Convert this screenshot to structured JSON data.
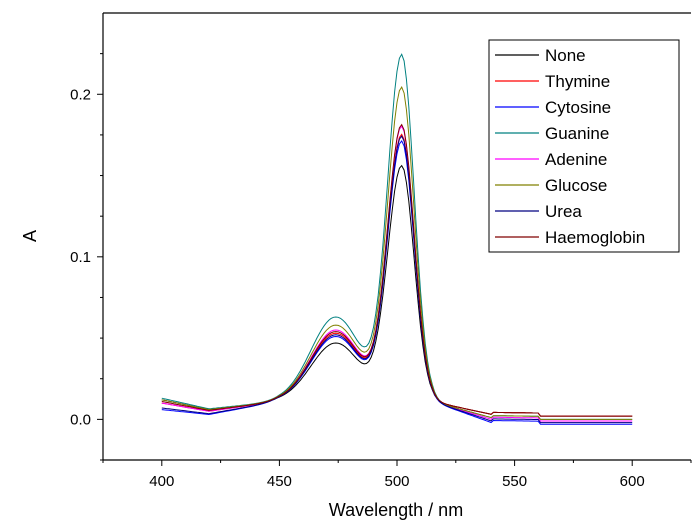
{
  "chart_data": {
    "type": "line",
    "title": "",
    "xlabel": "Wavelength / nm",
    "ylabel": "A",
    "xlim": [
      375,
      625
    ],
    "ylim": [
      -0.025,
      0.25
    ],
    "xticks": [
      400,
      450,
      500,
      550,
      600
    ],
    "yticks": [
      0.0,
      0.1,
      0.2
    ],
    "xtick_labels": [
      "400",
      "450",
      "500",
      "550",
      "600"
    ],
    "ytick_labels": [
      "0.0",
      "0.1",
      "0.2"
    ],
    "grid": false,
    "legend_position": "top-right",
    "series": [
      {
        "name": "None",
        "color": "#000000",
        "base": 0.012,
        "peak": 0.156,
        "shoulder": 0.036,
        "tail": 0.002
      },
      {
        "name": "Thymine",
        "color": "#ff0000",
        "base": 0.01,
        "peak": 0.175,
        "shoulder": 0.042,
        "tail": 0.002
      },
      {
        "name": "Cytosine",
        "color": "#0000ff",
        "base": 0.006,
        "peak": 0.171,
        "shoulder": 0.04,
        "tail": -0.003
      },
      {
        "name": "Guanine",
        "color": "#008080",
        "base": 0.013,
        "peak": 0.224,
        "shoulder": 0.052,
        "tail": 0.0
      },
      {
        "name": "Adenine",
        "color": "#ff00ff",
        "base": 0.01,
        "peak": 0.18,
        "shoulder": 0.044,
        "tail": -0.001
      },
      {
        "name": "Glucose",
        "color": "#808000",
        "base": 0.012,
        "peak": 0.204,
        "shoulder": 0.047,
        "tail": 0.0
      },
      {
        "name": "Urea",
        "color": "#000080",
        "base": 0.007,
        "peak": 0.174,
        "shoulder": 0.041,
        "tail": -0.002
      },
      {
        "name": "Haemoglobin",
        "color": "#800000",
        "base": 0.011,
        "peak": 0.181,
        "shoulder": 0.043,
        "tail": 0.002
      }
    ]
  }
}
